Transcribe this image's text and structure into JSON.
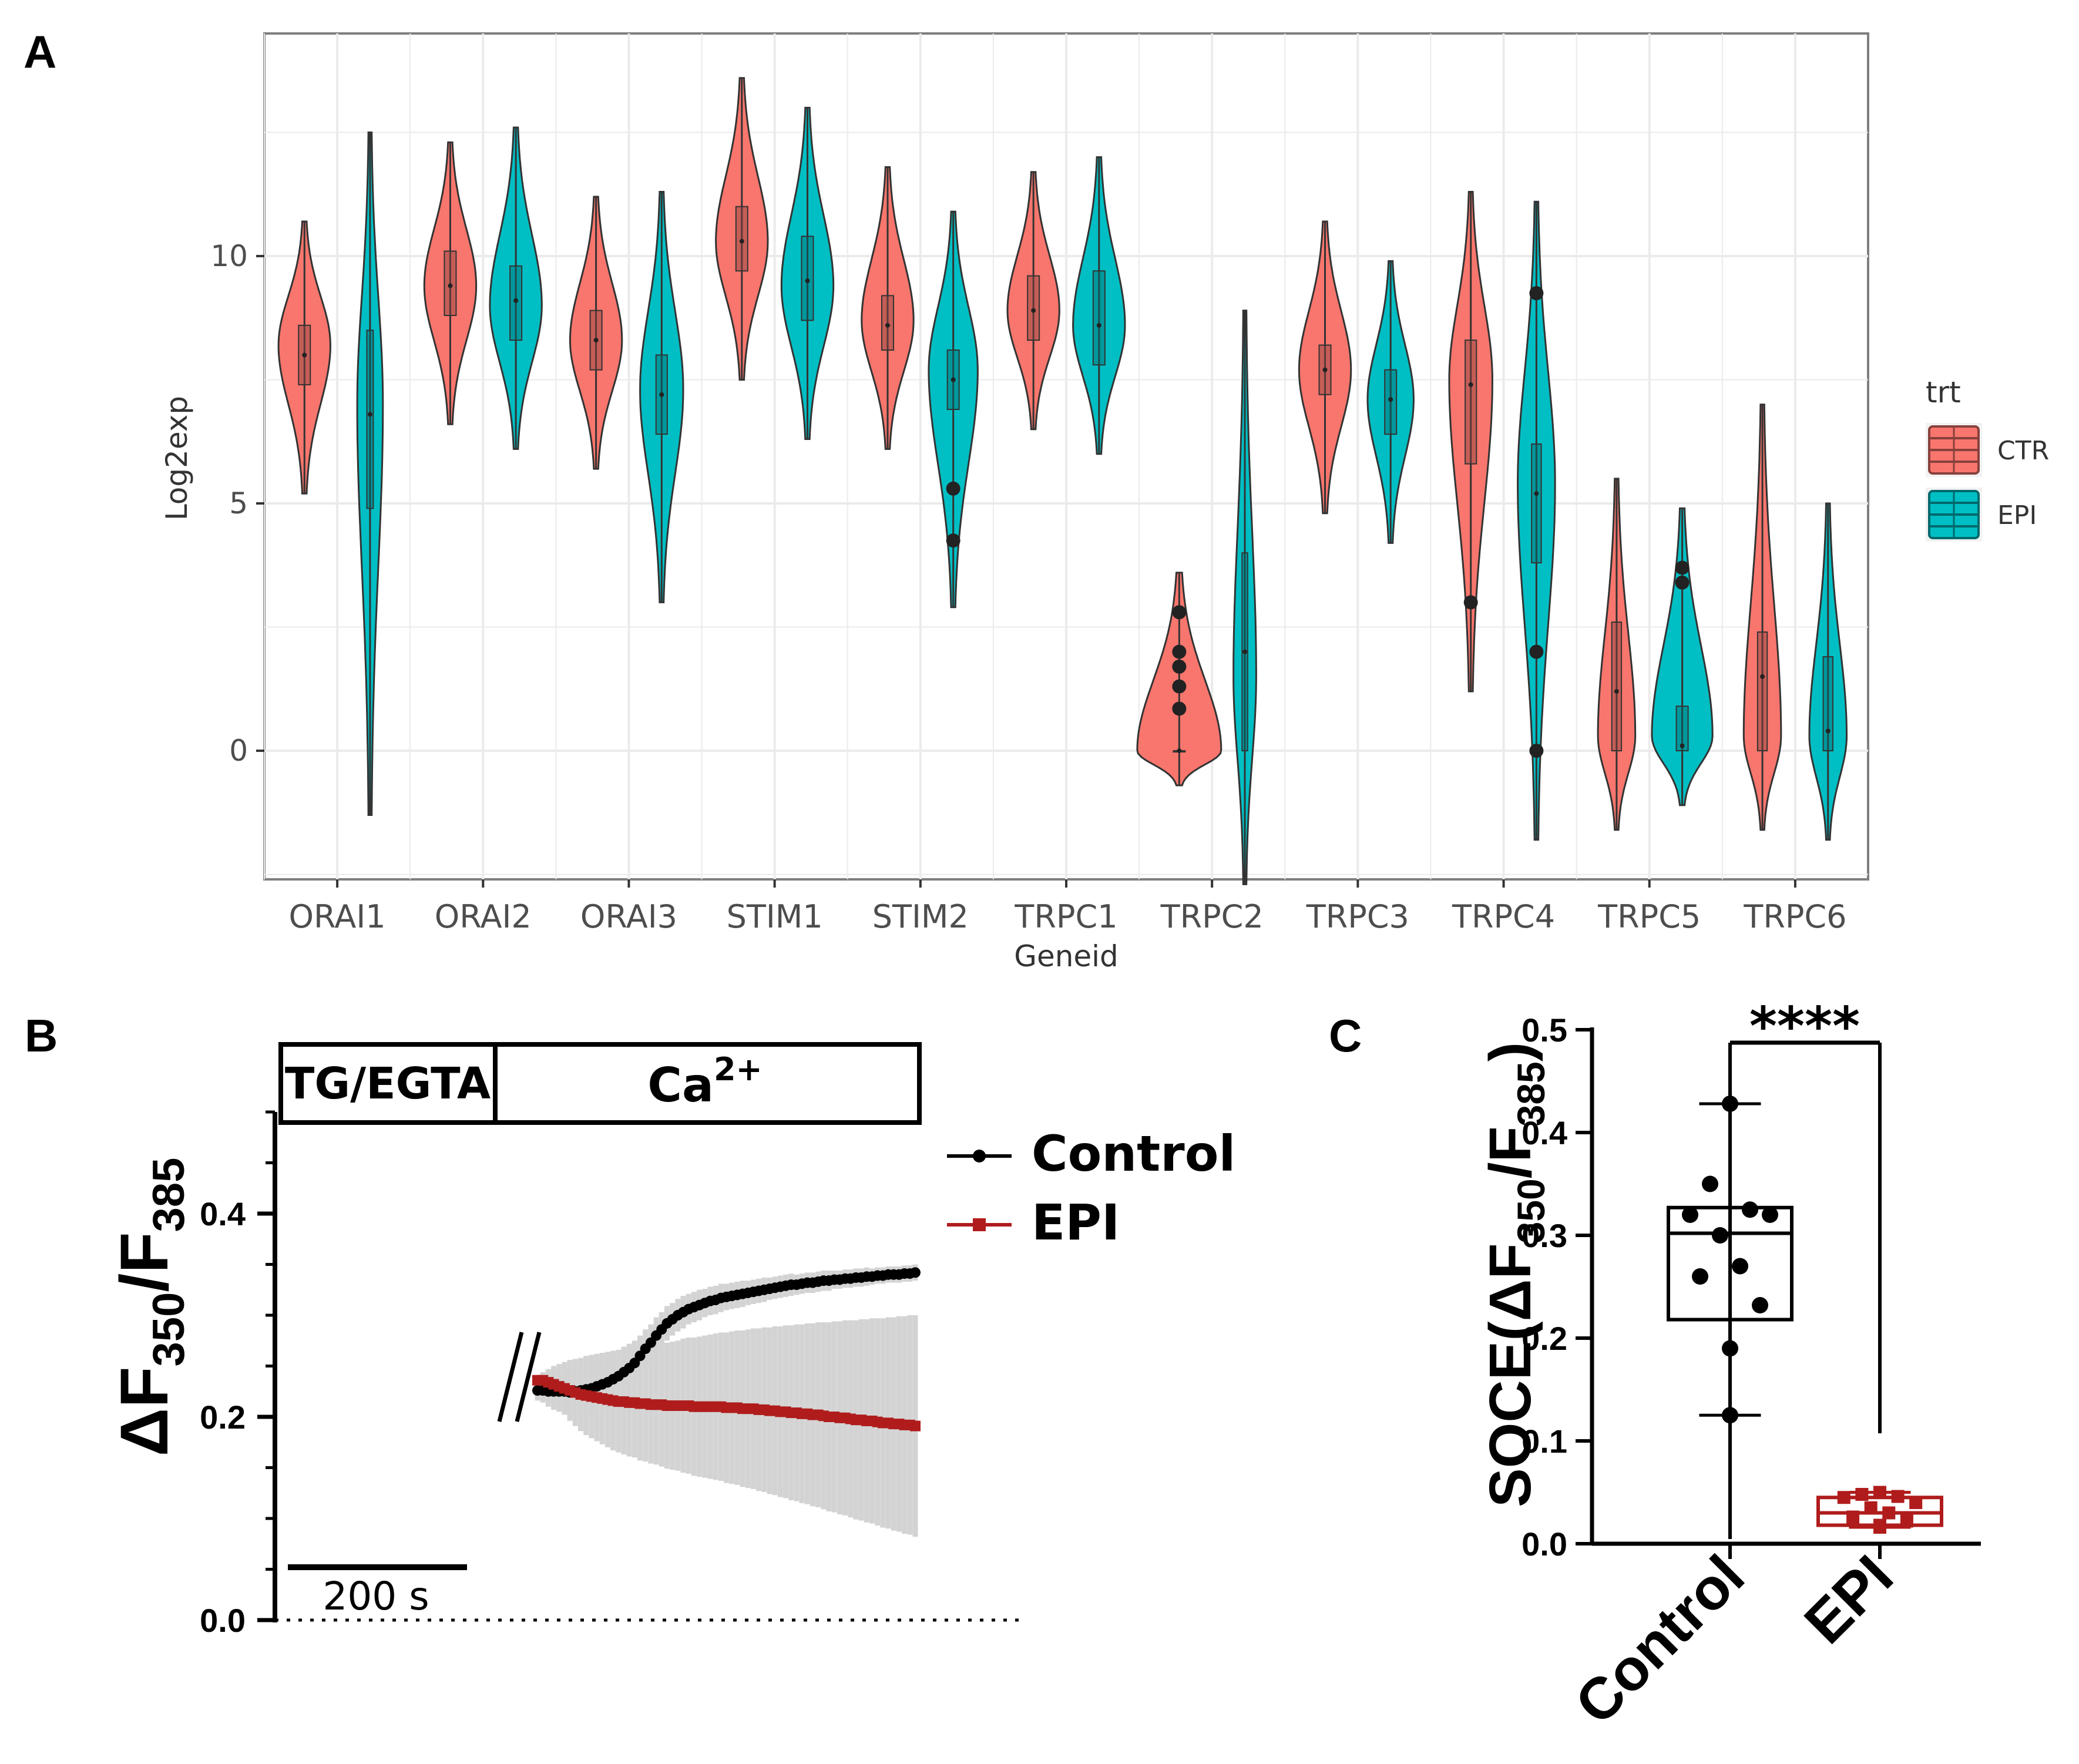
{
  "colors": {
    "ctr": "#F8766D",
    "epi": "#00BFC4",
    "black": "#000000",
    "red": "#B01C1C",
    "sem": "#D3D3D3",
    "grid": "#EBEBEB",
    "panel_border": "#7F7F7F"
  },
  "panels": {
    "a": "A",
    "b": "B",
    "c": "C"
  },
  "chart_data": [
    {
      "type": "violin",
      "panel": "A",
      "xlabel": "Geneid",
      "ylabel": "Log2exp",
      "yticks": [
        "0",
        "5",
        "10"
      ],
      "ylim": [
        -2.6,
        14.5
      ],
      "categories": [
        "ORAI1",
        "ORAI2",
        "ORAI3",
        "STIM1",
        "STIM2",
        "TRPC1",
        "TRPC2",
        "TRPC3",
        "TRPC4",
        "TRPC5",
        "TRPC6"
      ],
      "legend": {
        "title": "trt",
        "entries": [
          "CTR",
          "EPI"
        ],
        "placement": "right"
      },
      "series": [
        {
          "name": "CTR",
          "color_key": "ctr",
          "violins": [
            {
              "min": 5.2,
              "max": 10.7,
              "q1": 7.4,
              "median": 8.0,
              "q3": 8.6,
              "mode": 8.2,
              "width": 0.17,
              "outliers": []
            },
            {
              "min": 6.6,
              "max": 12.3,
              "q1": 8.8,
              "median": 9.4,
              "q3": 10.1,
              "mode": 9.4,
              "width": 0.17,
              "outliers": []
            },
            {
              "min": 5.7,
              "max": 11.2,
              "q1": 7.7,
              "median": 8.3,
              "q3": 8.9,
              "mode": 8.3,
              "width": 0.17,
              "outliers": []
            },
            {
              "min": 7.5,
              "max": 13.6,
              "q1": 9.7,
              "median": 10.3,
              "q3": 11.0,
              "mode": 10.3,
              "width": 0.17,
              "outliers": []
            },
            {
              "min": 6.1,
              "max": 11.8,
              "q1": 8.1,
              "median": 8.6,
              "q3": 9.2,
              "mode": 8.7,
              "width": 0.17,
              "outliers": []
            },
            {
              "min": 6.5,
              "max": 11.7,
              "q1": 8.3,
              "median": 8.9,
              "q3": 9.6,
              "mode": 8.9,
              "width": 0.17,
              "outliers": []
            },
            {
              "min": -0.7,
              "max": 3.6,
              "q1": 0.0,
              "median": 0.0,
              "q3": 0.0,
              "mode": 0.0,
              "width": 0.28,
              "outliers": [
                0.85,
                1.3,
                1.7,
                2.0,
                2.8
              ]
            },
            {
              "min": 4.8,
              "max": 10.7,
              "q1": 7.2,
              "median": 7.7,
              "q3": 8.2,
              "mode": 7.7,
              "width": 0.17,
              "outliers": []
            },
            {
              "min": 1.2,
              "max": 11.3,
              "q1": 5.8,
              "median": 7.4,
              "q3": 8.3,
              "mode": 7.5,
              "width": 0.14,
              "outliers": [
                3.0
              ]
            },
            {
              "min": -1.6,
              "max": 5.5,
              "q1": 0.0,
              "median": 1.2,
              "q3": 2.6,
              "mode": 0.3,
              "width": 0.12,
              "outliers": []
            },
            {
              "min": -1.6,
              "max": 7.0,
              "q1": 0.0,
              "median": 1.5,
              "q3": 2.4,
              "mode": 0.3,
              "width": 0.12,
              "outliers": []
            }
          ]
        },
        {
          "name": "EPI",
          "color_key": "epi",
          "violins": [
            {
              "min": -1.3,
              "max": 12.5,
              "q1": 4.9,
              "median": 6.8,
              "q3": 8.5,
              "mode": 7.0,
              "width": 0.08,
              "outliers": []
            },
            {
              "min": 6.1,
              "max": 12.6,
              "q1": 8.3,
              "median": 9.1,
              "q3": 9.8,
              "mode": 9.0,
              "width": 0.17,
              "outliers": []
            },
            {
              "min": 3.0,
              "max": 11.3,
              "q1": 6.4,
              "median": 7.2,
              "q3": 8.0,
              "mode": 7.3,
              "width": 0.14,
              "outliers": []
            },
            {
              "min": 6.3,
              "max": 13.0,
              "q1": 8.7,
              "median": 9.5,
              "q3": 10.4,
              "mode": 9.4,
              "width": 0.17,
              "outliers": []
            },
            {
              "min": 2.9,
              "max": 10.9,
              "q1": 6.9,
              "median": 7.5,
              "q3": 8.1,
              "mode": 7.7,
              "width": 0.16,
              "outliers": [
                4.25,
                5.3
              ]
            },
            {
              "min": 6.0,
              "max": 12.0,
              "q1": 7.8,
              "median": 8.6,
              "q3": 9.7,
              "mode": 8.6,
              "width": 0.17,
              "outliers": []
            },
            {
              "min": -2.7,
              "max": 8.9,
              "q1": 0.0,
              "median": 2.0,
              "q3": 4.0,
              "mode": 1.5,
              "width": 0.07,
              "outliers": []
            },
            {
              "min": 4.2,
              "max": 9.9,
              "q1": 6.4,
              "median": 7.1,
              "q3": 7.7,
              "mode": 7.1,
              "width": 0.15,
              "outliers": []
            },
            {
              "min": -1.8,
              "max": 11.1,
              "q1": 3.8,
              "median": 5.2,
              "q3": 6.2,
              "mode": 5.4,
              "width": 0.12,
              "outliers": [
                0.0,
                2.0,
                9.25
              ]
            },
            {
              "min": -1.1,
              "max": 4.9,
              "q1": 0.0,
              "median": 0.1,
              "q3": 0.9,
              "mode": 0.3,
              "width": 0.2,
              "outliers": [
                3.4,
                3.7
              ]
            },
            {
              "min": -1.8,
              "max": 5.0,
              "q1": 0.0,
              "median": 0.4,
              "q3": 1.9,
              "mode": 0.3,
              "width": 0.12,
              "outliers": []
            }
          ]
        }
      ]
    },
    {
      "type": "line",
      "panel": "B",
      "ylabel": "ΔF350/F385",
      "ylabel_parts": {
        "prefix": "ΔF",
        "sub1": "350",
        "slash": "/F",
        "sub2": "385"
      },
      "yticks": [
        "0.0",
        "0.2",
        "0.4"
      ],
      "ylim": [
        0.0,
        0.5
      ],
      "bars": {
        "tg": "TG/EGTA",
        "ca": "Ca",
        "ca_sup": "2+"
      },
      "scalebar_label": "200 s",
      "legend": {
        "entries": [
          "Control",
          "EPI"
        ],
        "placement": "top-right"
      },
      "x": [
        0,
        10,
        20,
        30,
        40,
        50,
        60,
        70,
        80,
        90,
        100,
        110,
        120,
        130,
        140,
        150,
        160,
        170,
        180,
        190,
        200,
        210,
        220,
        230,
        240,
        250,
        260,
        270,
        280,
        290,
        300,
        310,
        320,
        330,
        340,
        350,
        360,
        370,
        380,
        390,
        400,
        410,
        420,
        430,
        440,
        450,
        460,
        470,
        480,
        490,
        500,
        510,
        520,
        530,
        540,
        550,
        560,
        570,
        580,
        590,
        600,
        610,
        620,
        630,
        640,
        650,
        660,
        670,
        680,
        690,
        700
      ],
      "series": [
        {
          "name": "Control",
          "color_key": "black",
          "values": [
            0.226,
            0.226,
            0.225,
            0.225,
            0.225,
            0.225,
            0.224,
            0.225,
            0.226,
            0.227,
            0.228,
            0.23,
            0.232,
            0.234,
            0.237,
            0.24,
            0.244,
            0.248,
            0.253,
            0.26,
            0.267,
            0.273,
            0.28,
            0.286,
            0.292,
            0.296,
            0.3,
            0.303,
            0.306,
            0.308,
            0.31,
            0.312,
            0.314,
            0.315,
            0.317,
            0.318,
            0.319,
            0.32,
            0.321,
            0.322,
            0.323,
            0.324,
            0.325,
            0.326,
            0.327,
            0.328,
            0.329,
            0.33,
            0.33,
            0.331,
            0.332,
            0.332,
            0.333,
            0.334,
            0.334,
            0.335,
            0.335,
            0.336,
            0.336,
            0.337,
            0.337,
            0.338,
            0.338,
            0.339,
            0.339,
            0.34,
            0.34,
            0.34,
            0.341,
            0.341,
            0.342
          ],
          "error": [
            0.01,
            0.012,
            0.015,
            0.018,
            0.02,
            0.022,
            0.024,
            0.026,
            0.027,
            0.028,
            0.028,
            0.028,
            0.027,
            0.027,
            0.026,
            0.026,
            0.025,
            0.024,
            0.022,
            0.02,
            0.019,
            0.018,
            0.018,
            0.017,
            0.017,
            0.016,
            0.016,
            0.016,
            0.015,
            0.015,
            0.015,
            0.014,
            0.014,
            0.014,
            0.014,
            0.013,
            0.013,
            0.013,
            0.013,
            0.012,
            0.012,
            0.012,
            0.012,
            0.011,
            0.011,
            0.011,
            0.011,
            0.011,
            0.01,
            0.01,
            0.01,
            0.01,
            0.01,
            0.01,
            0.01,
            0.009,
            0.009,
            0.009,
            0.009,
            0.009,
            0.009,
            0.009,
            0.008,
            0.008,
            0.008,
            0.008,
            0.008,
            0.008,
            0.008,
            0.008,
            0.008
          ]
        },
        {
          "name": "EPI",
          "color_key": "red",
          "values": [
            0.236,
            0.236,
            0.234,
            0.232,
            0.23,
            0.228,
            0.226,
            0.224,
            0.222,
            0.221,
            0.22,
            0.219,
            0.218,
            0.217,
            0.216,
            0.215,
            0.215,
            0.214,
            0.214,
            0.213,
            0.213,
            0.212,
            0.212,
            0.212,
            0.211,
            0.211,
            0.211,
            0.211,
            0.211,
            0.21,
            0.21,
            0.21,
            0.21,
            0.21,
            0.21,
            0.209,
            0.209,
            0.209,
            0.208,
            0.208,
            0.208,
            0.207,
            0.207,
            0.206,
            0.206,
            0.205,
            0.205,
            0.204,
            0.204,
            0.203,
            0.203,
            0.202,
            0.202,
            0.201,
            0.2,
            0.2,
            0.199,
            0.199,
            0.198,
            0.197,
            0.197,
            0.196,
            0.196,
            0.195,
            0.194,
            0.194,
            0.193,
            0.193,
            0.192,
            0.192,
            0.191
          ],
          "error": [
            0.004,
            0.008,
            0.013,
            0.018,
            0.022,
            0.026,
            0.03,
            0.033,
            0.036,
            0.039,
            0.041,
            0.043,
            0.045,
            0.047,
            0.049,
            0.05,
            0.052,
            0.053,
            0.054,
            0.056,
            0.057,
            0.058,
            0.059,
            0.061,
            0.062,
            0.063,
            0.064,
            0.066,
            0.067,
            0.068,
            0.069,
            0.07,
            0.071,
            0.072,
            0.073,
            0.074,
            0.075,
            0.076,
            0.077,
            0.078,
            0.079,
            0.08,
            0.081,
            0.082,
            0.083,
            0.084,
            0.085,
            0.086,
            0.087,
            0.088,
            0.089,
            0.09,
            0.091,
            0.092,
            0.093,
            0.094,
            0.095,
            0.096,
            0.097,
            0.098,
            0.099,
            0.1,
            0.101,
            0.102,
            0.103,
            0.104,
            0.105,
            0.106,
            0.107,
            0.108,
            0.109
          ]
        }
      ]
    },
    {
      "type": "box",
      "panel": "C",
      "ylabel": "SOCE(ΔF350/F385)",
      "ylabel_parts": {
        "prefix": "SOCE(ΔF",
        "sub1": "350",
        "slash": "/F",
        "sub2": "385",
        "suffix": ")"
      },
      "yticks": [
        "0.0",
        "0.1",
        "0.2",
        "0.3",
        "0.4",
        "0.5"
      ],
      "ylim": [
        0.0,
        0.5
      ],
      "categories": [
        "Control",
        "EPI"
      ],
      "significance": "****",
      "boxes": [
        {
          "name": "Control",
          "color_key": "black",
          "min": 0.125,
          "q1": 0.218,
          "median": 0.302,
          "q3": 0.327,
          "max": 0.428,
          "points": [
            0.428,
            0.35,
            0.325,
            0.32,
            0.32,
            0.3,
            0.27,
            0.26,
            0.232,
            0.19,
            0.125
          ]
        },
        {
          "name": "EPI",
          "color_key": "red",
          "min": 0.016,
          "q1": 0.018,
          "median": 0.03,
          "q3": 0.045,
          "max": 0.05,
          "points": [
            0.05,
            0.048,
            0.046,
            0.045,
            0.04,
            0.035,
            0.03,
            0.026,
            0.022,
            0.018,
            0.016
          ]
        }
      ]
    }
  ]
}
